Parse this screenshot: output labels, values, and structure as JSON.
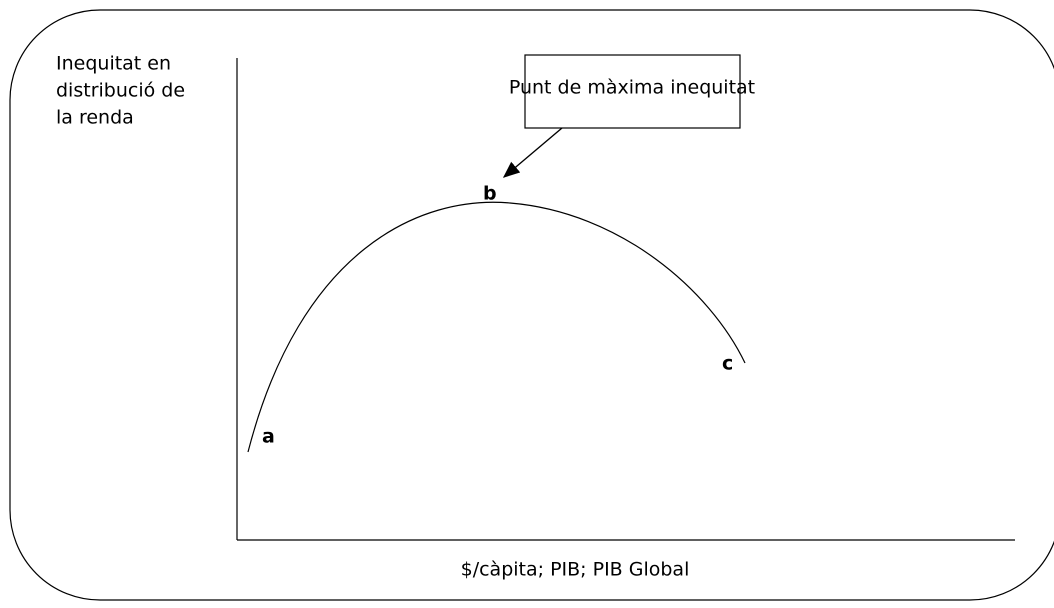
{
  "y_axis_label": [
    "Inequitat en",
    "distribució de",
    "la renda"
  ],
  "x_axis_label": "$/càpita; PIB; PIB Global",
  "callout": "Punt de màxima inequitat",
  "points": [
    "a",
    "b",
    "c"
  ]
}
